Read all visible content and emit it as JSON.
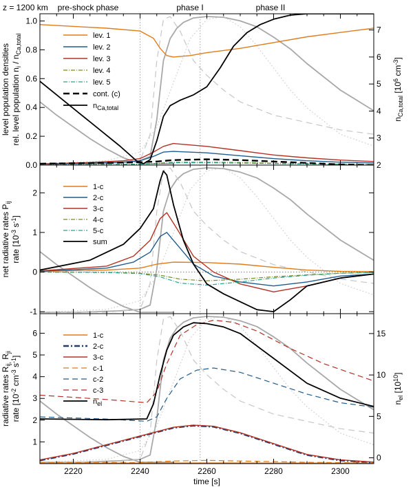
{
  "header": {
    "height_label": "z = 1200 km",
    "phases": [
      "pre-shock phase",
      "phase I",
      "phase II"
    ]
  },
  "colors": {
    "orange": "#e07b1a",
    "blue": "#1f5b8c",
    "red": "#b53022",
    "olive": "#7a8a18",
    "teal": "#2aa38a",
    "black": "#000000",
    "gray": "#a8a8a8",
    "lightgray": "#c6c6c6"
  },
  "chart_data": [
    {
      "type": "line",
      "panel": "top",
      "xlim": [
        2210,
        2310
      ],
      "ylim": [
        0,
        1.05
      ],
      "y2lim": [
        2.0,
        7.6
      ],
      "ylabel_outer": "level population densities",
      "ylabel_inner": "rel. level population n_i / n_Ca,total",
      "y2label": "n_Ca,total [10^6 cm^-3]",
      "yticks": [
        "0.0",
        "0.2",
        "0.4",
        "0.6",
        "0.8",
        "1.0"
      ],
      "y2ticks": [
        "2",
        "3",
        "4",
        "5",
        "6",
        "7"
      ],
      "legend": [
        "lev. 1",
        "lev. 2",
        "lev. 3",
        "lev. 4",
        "lev. 5",
        "cont. (c)",
        "n_Ca,total"
      ],
      "series": [
        {
          "name": "lev. 1",
          "x": [
            2210,
            2230,
            2240,
            2244,
            2246,
            2248,
            2250,
            2255,
            2260,
            2270,
            2280,
            2290,
            2300,
            2310
          ],
          "y": [
            0.975,
            0.95,
            0.93,
            0.88,
            0.81,
            0.76,
            0.75,
            0.76,
            0.78,
            0.81,
            0.85,
            0.89,
            0.92,
            0.95
          ]
        },
        {
          "name": "lev. 2",
          "x": [
            2210,
            2225,
            2235,
            2240,
            2244,
            2247,
            2250,
            2260,
            2270,
            2280,
            2290,
            2300,
            2310
          ],
          "y": [
            0.006,
            0.012,
            0.02,
            0.03,
            0.06,
            0.09,
            0.095,
            0.085,
            0.065,
            0.045,
            0.03,
            0.02,
            0.015
          ]
        },
        {
          "name": "lev. 3",
          "x": [
            2210,
            2225,
            2235,
            2240,
            2244,
            2247,
            2250,
            2260,
            2270,
            2280,
            2290,
            2300,
            2310
          ],
          "y": [
            0.008,
            0.018,
            0.03,
            0.045,
            0.09,
            0.13,
            0.15,
            0.13,
            0.1,
            0.07,
            0.05,
            0.035,
            0.025
          ]
        },
        {
          "name": "lev. 4",
          "x": [
            2210,
            2230,
            2240,
            2245,
            2250,
            2260,
            2270,
            2280,
            2290,
            2300,
            2310
          ],
          "y": [
            0.002,
            0.004,
            0.006,
            0.012,
            0.02,
            0.02,
            0.018,
            0.013,
            0.009,
            0.006,
            0.004
          ]
        },
        {
          "name": "lev. 5",
          "x": [
            2210,
            2230,
            2240,
            2245,
            2250,
            2260,
            2270,
            2280,
            2290,
            2300,
            2310
          ],
          "y": [
            0.002,
            0.004,
            0.006,
            0.01,
            0.016,
            0.016,
            0.014,
            0.011,
            0.008,
            0.005,
            0.003
          ]
        },
        {
          "name": "cont. (c)",
          "x": [
            2210,
            2230,
            2240,
            2245,
            2250,
            2260,
            2270,
            2280,
            2290,
            2300,
            2310
          ],
          "y": [
            0.01,
            0.015,
            0.02,
            0.025,
            0.035,
            0.04,
            0.035,
            0.025,
            0.015,
            0.005,
            0.0
          ]
        },
        {
          "name": "n_Ca,total",
          "axis": "right",
          "x": [
            2210,
            2216,
            2222,
            2228,
            2234,
            2239,
            2241,
            2243,
            2245,
            2247,
            2249,
            2252,
            2256,
            2260,
            2264,
            2268,
            2272,
            2276,
            2280,
            2285,
            2290,
            2300,
            2310
          ],
          "y": [
            5.1,
            4.5,
            3.9,
            3.3,
            2.7,
            2.15,
            2.05,
            2.2,
            2.9,
            3.8,
            4.2,
            4.4,
            4.6,
            4.9,
            5.6,
            6.4,
            6.9,
            7.2,
            7.4,
            7.55,
            7.6,
            7.6,
            7.6
          ]
        }
      ]
    },
    {
      "type": "line",
      "panel": "middle",
      "xlim": [
        2210,
        2310
      ],
      "ylim": [
        -1.05,
        2.7
      ],
      "ylabel_outer": "net radiative rates P_ij",
      "ylabel_inner": "rate [10^-3 s^-1]",
      "yticks": [
        "-1",
        "0",
        "1",
        "2"
      ],
      "legend": [
        "1-c",
        "2-c",
        "3-c",
        "4-c",
        "5-c",
        "sum"
      ],
      "series": [
        {
          "name": "1-c",
          "x": [
            2210,
            2230,
            2240,
            2245,
            2250,
            2260,
            2270,
            2280,
            2290,
            2300,
            2310
          ],
          "y": [
            0.02,
            0.05,
            0.1,
            0.2,
            0.25,
            0.24,
            0.2,
            0.12,
            0.05,
            0.02,
            0.01
          ]
        },
        {
          "name": "2-c",
          "x": [
            2210,
            2230,
            2238,
            2243,
            2246,
            2248,
            2251,
            2256,
            2262,
            2270,
            2280,
            2290,
            2300,
            2310
          ],
          "y": [
            0.02,
            0.1,
            0.25,
            0.5,
            0.9,
            1.0,
            0.7,
            0.2,
            -0.1,
            -0.25,
            -0.35,
            -0.25,
            -0.1,
            -0.05
          ]
        },
        {
          "name": "3-c",
          "x": [
            2210,
            2230,
            2238,
            2243,
            2246,
            2248,
            2251,
            2256,
            2262,
            2270,
            2280,
            2290,
            2300,
            2310
          ],
          "y": [
            0.03,
            0.15,
            0.4,
            0.8,
            1.35,
            1.5,
            1.1,
            0.4,
            0.0,
            -0.3,
            -0.5,
            -0.35,
            -0.15,
            -0.05
          ]
        },
        {
          "name": "4-c",
          "x": [
            2210,
            2230,
            2240,
            2246,
            2252,
            2260,
            2270,
            2280,
            2290,
            2300,
            2310
          ],
          "y": [
            0.0,
            -0.01,
            -0.03,
            -0.08,
            -0.18,
            -0.22,
            -0.18,
            -0.12,
            -0.07,
            -0.03,
            -0.01
          ]
        },
        {
          "name": "5-c",
          "x": [
            2210,
            2230,
            2240,
            2246,
            2252,
            2260,
            2270,
            2280,
            2290,
            2300,
            2310
          ],
          "y": [
            0.0,
            -0.01,
            -0.04,
            -0.12,
            -0.28,
            -0.33,
            -0.25,
            -0.15,
            -0.08,
            -0.03,
            -0.01
          ]
        },
        {
          "name": "sum",
          "x": [
            2210,
            2225,
            2235,
            2240,
            2244,
            2246,
            2247,
            2248,
            2250,
            2253,
            2256,
            2260,
            2265,
            2270,
            2275,
            2280,
            2285,
            2290,
            2300,
            2310
          ],
          "y": [
            0.05,
            0.3,
            0.7,
            1.1,
            1.6,
            2.3,
            2.55,
            2.45,
            1.7,
            0.8,
            0.2,
            -0.3,
            -0.55,
            -0.75,
            -0.95,
            -1.0,
            -0.7,
            -0.35,
            -0.15,
            -0.05
          ]
        }
      ]
    },
    {
      "type": "line",
      "panel": "bottom",
      "xlim": [
        2210,
        2310
      ],
      "ylim": [
        0,
        6.9
      ],
      "y2lim": [
        -0.7,
        17.4
      ],
      "ylabel_outer": "radiative rates R_ij, R_ji",
      "ylabel_inner": "rate [10^-2 cm^-3 s^-1]",
      "y2label": "n_el [10^10]",
      "xlabel": "time [s]",
      "xticks": [
        "2220",
        "2240",
        "2260",
        "2280",
        "2300"
      ],
      "yticks": [
        "1",
        "2",
        "3",
        "4",
        "5",
        "6"
      ],
      "y2ticks": [
        "0",
        "5",
        "10",
        "15"
      ],
      "legend": [
        "1-c",
        "2-c",
        "3-c",
        "c-1",
        "c-2",
        "c-3",
        "n_el"
      ],
      "series": [
        {
          "name": "1-c",
          "x": [
            2210,
            2260,
            2310
          ],
          "y": [
            0.02,
            0.03,
            0.02
          ]
        },
        {
          "name": "2-c",
          "x": [
            2210,
            2220,
            2230,
            2240,
            2250,
            2256,
            2262,
            2270,
            2280,
            2290,
            2300,
            2310
          ],
          "y": [
            0.15,
            0.45,
            0.85,
            1.25,
            1.65,
            1.75,
            1.7,
            1.4,
            0.9,
            0.4,
            0.15,
            0.05
          ]
        },
        {
          "name": "3-c",
          "x": [
            2210,
            2220,
            2230,
            2240,
            2250,
            2256,
            2262,
            2270,
            2280,
            2290,
            2300,
            2310
          ],
          "y": [
            0.17,
            0.47,
            0.87,
            1.27,
            1.67,
            1.77,
            1.72,
            1.42,
            0.92,
            0.42,
            0.17,
            0.07
          ]
        },
        {
          "name": "c-1",
          "x": [
            2210,
            2240,
            2250,
            2260,
            2270,
            2290,
            2310
          ],
          "y": [
            0.04,
            0.05,
            0.12,
            0.15,
            0.12,
            0.06,
            0.03
          ]
        },
        {
          "name": "c-2",
          "x": [
            2210,
            2230,
            2242,
            2245,
            2248,
            2252,
            2257,
            2262,
            2270,
            2280,
            2290,
            2300,
            2310
          ],
          "y": [
            2.15,
            2.05,
            1.95,
            2.15,
            3.0,
            3.9,
            4.3,
            4.4,
            4.2,
            3.7,
            3.2,
            2.8,
            2.6
          ]
        },
        {
          "name": "c-3",
          "x": [
            2210,
            2230,
            2242,
            2245,
            2248,
            2252,
            2257,
            2262,
            2268,
            2275,
            2285,
            2295,
            2310
          ],
          "y": [
            3.15,
            2.95,
            2.8,
            3.3,
            4.6,
            5.9,
            6.4,
            6.6,
            6.5,
            6.1,
            5.3,
            4.6,
            3.8
          ]
        },
        {
          "name": "n_el",
          "axis": "right",
          "x": [
            2210,
            2230,
            2242,
            2244,
            2246,
            2248,
            2250,
            2253,
            2256,
            2260,
            2265,
            2270,
            2280,
            2290,
            2300,
            2310
          ],
          "y": [
            4.7,
            4.6,
            4.7,
            6.5,
            10.0,
            13.0,
            14.8,
            15.8,
            16.3,
            16.2,
            15.8,
            15.0,
            12.0,
            9.0,
            7.2,
            6.2
          ]
        }
      ]
    }
  ],
  "overlays": [
    {
      "name": "solid gray A",
      "panels": [
        "top",
        "middle",
        "bottom"
      ],
      "x": [
        2210,
        2216,
        2222,
        2228,
        2234,
        2240,
        2243,
        2245,
        2247,
        2249,
        2251,
        2253,
        2256,
        2260,
        2265,
        2270,
        2275,
        2280,
        2285,
        2290,
        2300,
        2310
      ],
      "y": [
        0.0,
        0.0,
        0.0,
        0.005,
        0.01,
        0.02,
        0.05,
        0.3,
        0.7,
        0.85,
        0.92,
        0.96,
        0.99,
        1.0,
        0.995,
        0.97,
        0.93,
        0.86,
        0.78,
        0.68,
        0.5,
        0.36
      ]
    },
    {
      "name": "solid gray B",
      "panels": [
        "top",
        "middle",
        "bottom"
      ],
      "x": [
        2210,
        2215,
        2220,
        2225,
        2230,
        2235,
        2240,
        2245,
        2250
      ],
      "y": [
        0.42,
        0.33,
        0.25,
        0.17,
        0.1,
        0.04,
        0.0,
        0.0,
        0.0
      ]
    },
    {
      "name": "dashed gray",
      "panels": [
        "top",
        "middle",
        "bottom"
      ],
      "x": [
        2210,
        2230,
        2240,
        2243,
        2245,
        2247,
        2249,
        2252,
        2256,
        2260,
        2265,
        2270,
        2280,
        2290,
        2300,
        2310
      ],
      "y": [
        0.0,
        0.0,
        0.02,
        0.2,
        0.7,
        0.98,
        1.0,
        0.9,
        0.7,
        0.6,
        0.5,
        0.42,
        0.33,
        0.28,
        0.23,
        0.2
      ]
    },
    {
      "name": "dotted gray",
      "panels": [
        "top",
        "middle",
        "bottom"
      ],
      "x": [
        2210,
        2230,
        2240,
        2245,
        2250,
        2255,
        2260,
        2265,
        2270,
        2275,
        2280,
        2285,
        2290,
        2300,
        2310
      ],
      "y": [
        0.0,
        0.02,
        0.08,
        0.25,
        0.55,
        0.85,
        0.98,
        1.0,
        0.93,
        0.8,
        0.65,
        0.5,
        0.38,
        0.2,
        0.12
      ]
    }
  ],
  "markers": {
    "vlines_x": [
      2240,
      2258
    ]
  }
}
